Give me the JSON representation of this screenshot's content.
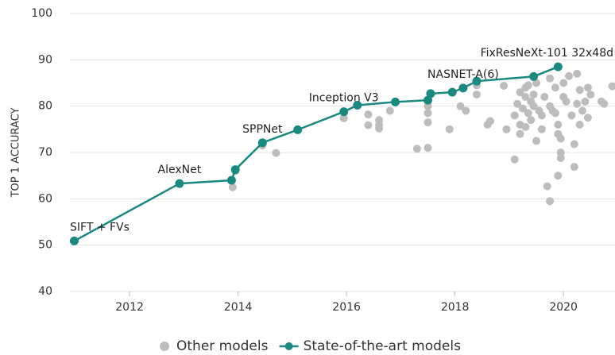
{
  "chart_data": {
    "type": "scatter_line",
    "ylabel": "TOP 1 ACCURACY",
    "xlim": [
      2010.9,
      2020.95
    ],
    "ylim": [
      40,
      100
    ],
    "xticks": [
      2012,
      2014,
      2016,
      2018,
      2020
    ],
    "yticks": [
      40,
      50,
      60,
      70,
      80,
      90,
      100
    ],
    "grid": true,
    "series": [
      {
        "name": "Other models",
        "color": "#bdbdbd",
        "kind": "scatter",
        "x": [
          2013.9,
          2013.95,
          2014.45,
          2014.7,
          2015.95,
          2016.4,
          2016.4,
          2016.6,
          2016.6,
          2016.6,
          2016.8,
          2017.3,
          2017.5,
          2017.5,
          2017.5,
          2017.5,
          2017.5,
          2017.9,
          2018.1,
          2018.2,
          2018.4,
          2018.4,
          2018.6,
          2018.65,
          2018.9,
          2018.95,
          2019.1,
          2019.1,
          2019.15,
          2019.2,
          2019.2,
          2019.25,
          2019.3,
          2019.3,
          2019.35,
          2019.35,
          2019.4,
          2019.4,
          2019.45,
          2019.5,
          2019.55,
          2019.6,
          2019.6,
          2019.65,
          2019.7,
          2019.75,
          2019.75,
          2019.8,
          2019.85,
          2019.85,
          2019.9,
          2019.9,
          2019.95,
          2019.95,
          2020.0,
          2020.0,
          2020.05,
          2020.1,
          2020.15,
          2020.2,
          2020.2,
          2020.25,
          2020.3,
          2020.3,
          2020.35,
          2020.4,
          2020.45,
          2020.45,
          2020.5,
          2020.7,
          2020.75,
          2020.9,
          2019.75,
          2019.9,
          2019.3,
          2019.5,
          2020.25,
          2019.95,
          2019.2,
          2019.45
        ],
        "y": [
          62.5,
          66.0,
          71.5,
          69.9,
          77.4,
          78.2,
          75.9,
          77.0,
          76.0,
          75.2,
          79.0,
          70.8,
          71.0,
          76.5,
          78.5,
          80.0,
          81.0,
          75.0,
          80.0,
          79.0,
          82.5,
          84.5,
          76.0,
          76.8,
          84.4,
          75.0,
          68.5,
          78.0,
          80.5,
          83.0,
          76.0,
          79.5,
          82.0,
          75.5,
          84.5,
          78.5,
          81.0,
          77.0,
          80.0,
          72.5,
          79.0,
          78.0,
          75.0,
          82.0,
          62.7,
          59.5,
          86.0,
          79.0,
          78.5,
          84.0,
          74.0,
          76.0,
          70.0,
          73.0,
          85.0,
          82.0,
          81.0,
          86.5,
          78.0,
          66.9,
          71.8,
          80.5,
          83.5,
          76.0,
          79.0,
          81.0,
          84.0,
          77.5,
          82.5,
          81.0,
          80.5,
          84.3,
          80.0,
          65.0,
          84.0,
          85.0,
          87.0,
          68.8,
          74.0,
          82.5
        ]
      },
      {
        "name": "State-of-the-art models",
        "color": "#1a8a80",
        "kind": "line",
        "x": [
          2010.98,
          2012.92,
          2013.88,
          2013.95,
          2014.45,
          2015.1,
          2015.95,
          2016.2,
          2016.9,
          2017.5,
          2017.55,
          2017.95,
          2018.15,
          2018.4,
          2019.45,
          2019.9
        ],
        "y": [
          50.9,
          63.3,
          64.0,
          66.3,
          72.1,
          74.9,
          78.8,
          80.2,
          80.9,
          81.3,
          82.7,
          83.0,
          83.9,
          85.4,
          86.4,
          88.5
        ],
        "point_labels": [
          "SIFT + FVs",
          "AlexNet",
          null,
          null,
          "SPPNet",
          null,
          "Inception V3",
          null,
          null,
          null,
          null,
          null,
          "NASNET-A(6)",
          null,
          null,
          "FixResNeXt-101 32x48d"
        ]
      }
    ]
  }
}
